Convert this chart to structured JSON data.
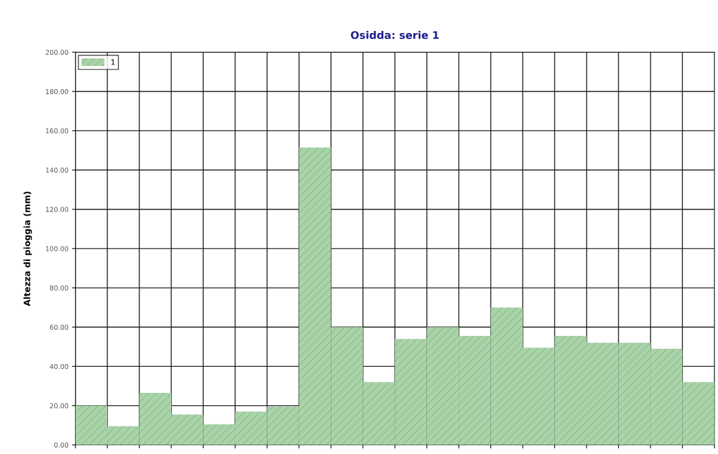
{
  "chart_data": {
    "type": "bar",
    "title": "Osidda: serie 1",
    "ylabel": "Altezza di pioggia (mm)",
    "categories": [
      null,
      null,
      null,
      null,
      null,
      null,
      null,
      null,
      null,
      null,
      null,
      null,
      null,
      null,
      null,
      null,
      null,
      null,
      null,
      null
    ],
    "series": [
      {
        "name": "1",
        "color": "#a9d4a9",
        "values": [
          20,
          9.5,
          26.5,
          15.5,
          10.5,
          17,
          19.5,
          151.5,
          60,
          32,
          54,
          60,
          55.5,
          70,
          49.5,
          55.5,
          52,
          52,
          49,
          32
        ]
      }
    ],
    "ylim": [
      0,
      200
    ],
    "yticks": [
      {
        "value": 0,
        "label": "0.00"
      },
      {
        "value": 20,
        "label": "20.00"
      },
      {
        "value": 40,
        "label": "40.00"
      },
      {
        "value": 60,
        "label": "60.00"
      },
      {
        "value": 80,
        "label": "80.00"
      },
      {
        "value": 100,
        "label": "100.00"
      },
      {
        "value": 120,
        "label": "120.00"
      },
      {
        "value": 140,
        "label": "140.00"
      },
      {
        "value": 160,
        "label": "160.00"
      },
      {
        "value": 180,
        "label": "180.00"
      },
      {
        "value": 200,
        "label": "200.00"
      }
    ],
    "grid": true,
    "legend": "top left"
  }
}
